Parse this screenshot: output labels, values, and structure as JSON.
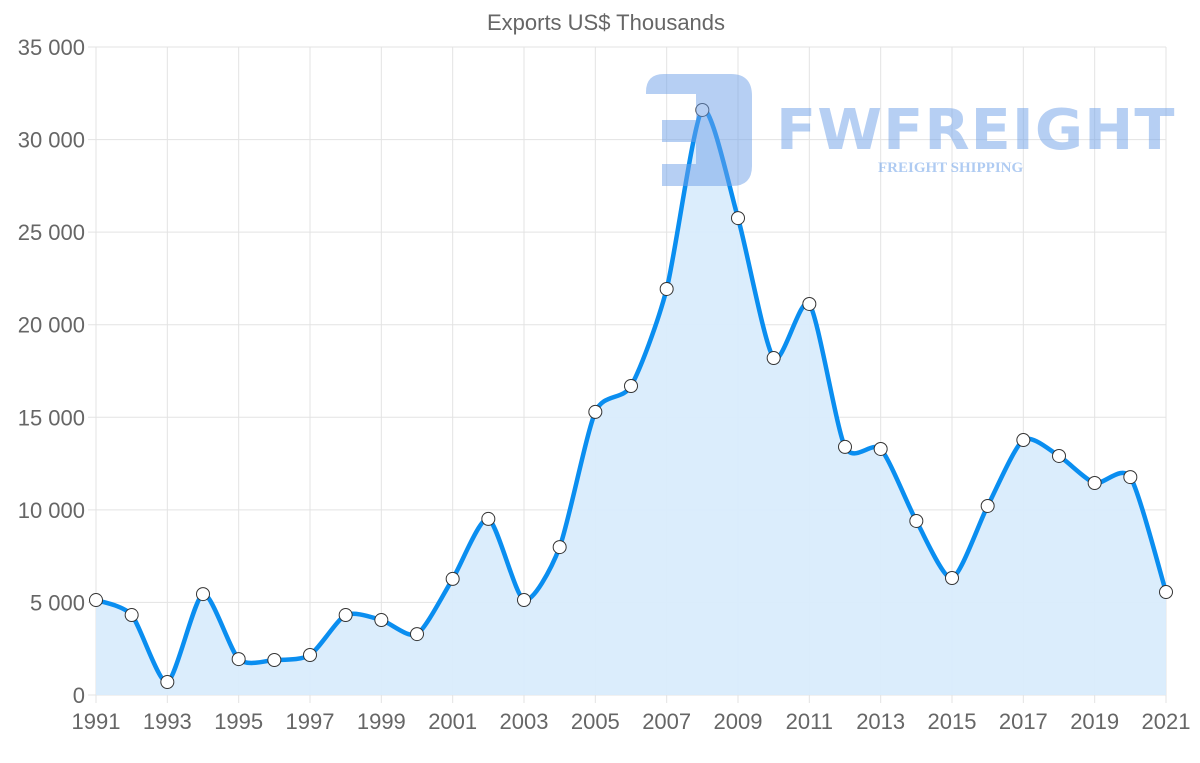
{
  "chart_data": {
    "type": "area",
    "title": "Exports US$ Thousands",
    "xlabel": "",
    "ylabel": "",
    "x": [
      1991,
      1992,
      1993,
      1994,
      1995,
      1996,
      1997,
      1998,
      1999,
      2000,
      2001,
      2002,
      2003,
      2004,
      2005,
      2006,
      2007,
      2008,
      2009,
      2010,
      2011,
      2012,
      2013,
      2014,
      2015,
      2016,
      2017,
      2018,
      2019,
      2020,
      2021
    ],
    "series": [
      {
        "name": "Exports US$ Thousands",
        "values": [
          5130,
          4320,
          700,
          5450,
          1940,
          1890,
          2160,
          4320,
          4050,
          3290,
          6270,
          9510,
          5130,
          7990,
          15290,
          16690,
          21930,
          31600,
          25760,
          18200,
          21120,
          13400,
          13290,
          9400,
          6320,
          10210,
          13770,
          12910,
          11450,
          11770,
          5560
        ]
      }
    ],
    "xlim": [
      1991,
      2021
    ],
    "ylim": [
      0,
      35000
    ],
    "x_ticks": [
      "1991",
      "1993",
      "1995",
      "1997",
      "1999",
      "2001",
      "2003",
      "2005",
      "2007",
      "2009",
      "2011",
      "2013",
      "2015",
      "2017",
      "2019",
      "2021"
    ],
    "y_ticks": [
      "0",
      "5 000",
      "10 000",
      "15 000",
      "20 000",
      "25 000",
      "30 000",
      "35 000"
    ],
    "grid": true,
    "legend": "none",
    "colors": {
      "line": "#0a8ef0",
      "fill": "#d9ecfc",
      "grid": "#e3e3e3",
      "text": "#666666"
    }
  },
  "watermark": {
    "brand": "FWFREIGHT",
    "tagline": "FREIGHT SHIPPING"
  }
}
